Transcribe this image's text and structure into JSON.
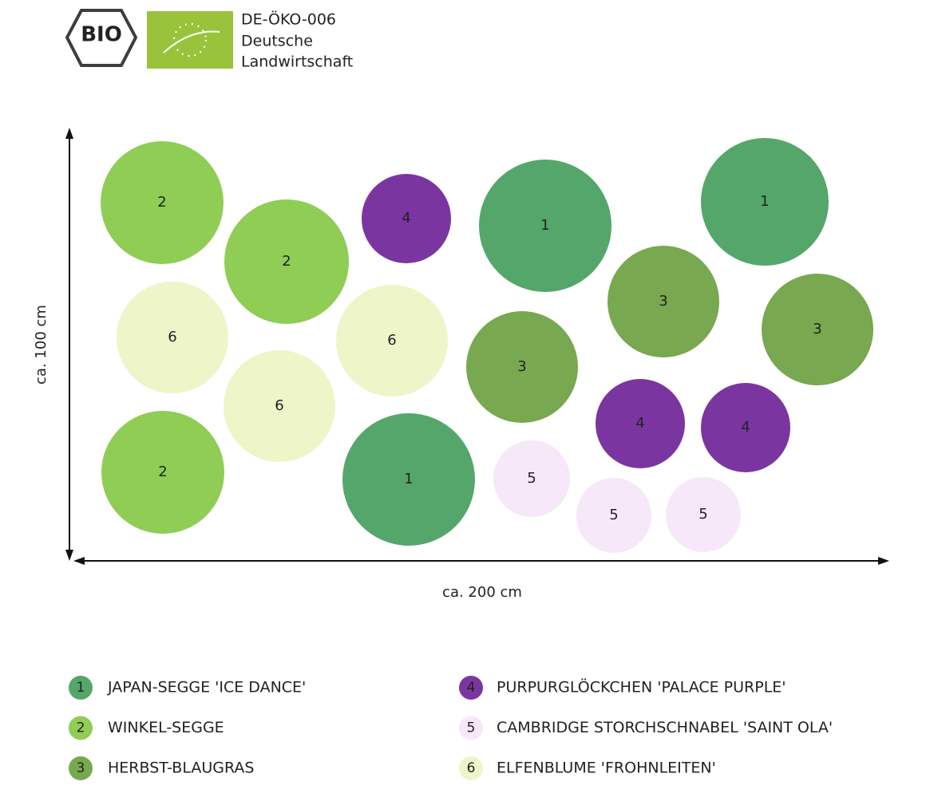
{
  "header": {
    "bio_logo": "BIO",
    "certificate": [
      "DE-ÖKO-006",
      "Deutsche",
      "Landwirtschaft"
    ]
  },
  "plan": {
    "y_axis_label": "ca. 100 cm",
    "x_axis_label": "ca. 200 cm",
    "circles": [
      {
        "label": "2"
      },
      {
        "label": "2"
      },
      {
        "label": "4"
      },
      {
        "label": "1"
      },
      {
        "label": "1"
      },
      {
        "label": "6"
      },
      {
        "label": "6"
      },
      {
        "label": "3"
      },
      {
        "label": "3"
      },
      {
        "label": "3"
      },
      {
        "label": "6"
      },
      {
        "label": "2"
      },
      {
        "label": "1"
      },
      {
        "label": "5"
      },
      {
        "label": "4"
      },
      {
        "label": "4"
      },
      {
        "label": "5"
      },
      {
        "label": "5"
      }
    ]
  },
  "legend": {
    "items": [
      {
        "number": "1",
        "text": "JAPAN-SEGGE 'ICE DANCE'",
        "color": "#55a66a",
        "text_color": "#ffffff"
      },
      {
        "number": "2",
        "text": "WINKEL-SEGGE",
        "color": "#8fcd55",
        "text_color": "#ffffff"
      },
      {
        "number": "3",
        "text": "HERBST-BLAUGRAS",
        "color": "#78a84f",
        "text_color": "#ffffff"
      },
      {
        "number": "4",
        "text": "PURPURGLÖCKCHEN 'PALACE PURPLE'",
        "color": "#7b35a0",
        "text_color": "#ffffff"
      },
      {
        "number": "5",
        "text": "CAMBRIDGE STORCHSCHNABEL 'SAINT OLA'",
        "color": "#f6e8f8",
        "text_color": "#333333"
      },
      {
        "number": "6",
        "text": "ELFENBLUME 'FROHNLEITEN'",
        "color": "#eef5c8",
        "text_color": "#333333"
      }
    ]
  }
}
